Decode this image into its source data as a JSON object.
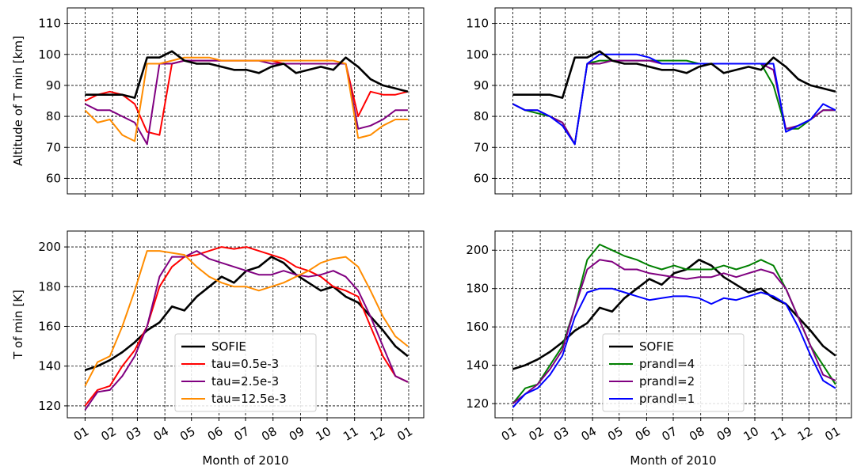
{
  "chart_data": [
    {
      "type": "line",
      "y_label": "Altitude of T min [km]",
      "x": [
        0,
        14,
        28,
        42,
        56,
        70,
        84,
        98,
        112,
        126,
        140,
        154,
        168,
        182,
        196,
        210,
        224,
        238,
        252,
        266,
        280,
        294,
        308,
        322,
        336,
        350,
        364
      ],
      "xlim": [
        -20,
        382
      ],
      "xticks": [
        0,
        31,
        59,
        90,
        120,
        151,
        181,
        212,
        243,
        273,
        304,
        334,
        365
      ],
      "ylim": [
        55,
        115
      ],
      "yticks": [
        60,
        70,
        80,
        90,
        100,
        110
      ],
      "grid": true,
      "series": [
        {
          "name": "tau=0.5e-3",
          "color": "#ff0000",
          "values": [
            85,
            87,
            88,
            87,
            84,
            75,
            74,
            97,
            98,
            98,
            98,
            98,
            98,
            98,
            98,
            98,
            97,
            97,
            97,
            97,
            97,
            97,
            80,
            88,
            87,
            87,
            88
          ]
        },
        {
          "name": "tau=2.5e-3",
          "color": "#800080",
          "values": [
            84,
            82,
            82,
            80,
            78,
            71,
            97,
            97,
            98,
            98,
            98,
            98,
            98,
            98,
            98,
            97,
            97,
            97,
            97,
            97,
            97,
            97,
            76,
            77,
            79,
            82,
            82
          ]
        },
        {
          "name": "tau=12.5e-3",
          "color": "#ff8c00",
          "values": [
            82,
            78,
            79,
            74,
            72,
            97,
            97,
            98,
            99,
            99,
            99,
            98,
            98,
            98,
            98,
            98,
            98,
            98,
            98,
            98,
            98,
            97,
            73,
            74,
            77,
            79,
            79
          ]
        },
        {
          "name": "SOFIE",
          "color": "#000000",
          "values": [
            87,
            87,
            87,
            87,
            86,
            99,
            99,
            101,
            98,
            97,
            97,
            96,
            95,
            95,
            94,
            96,
            97,
            94,
            95,
            96,
            95,
            99,
            96,
            92,
            90,
            89,
            88
          ]
        }
      ]
    },
    {
      "type": "line",
      "x": [
        0,
        14,
        28,
        42,
        56,
        70,
        84,
        98,
        112,
        126,
        140,
        154,
        168,
        182,
        196,
        210,
        224,
        238,
        252,
        266,
        280,
        294,
        308,
        322,
        336,
        350,
        364
      ],
      "xlim": [
        -20,
        382
      ],
      "xticks": [
        0,
        31,
        59,
        90,
        120,
        151,
        181,
        212,
        243,
        273,
        304,
        334,
        365
      ],
      "ylim": [
        55,
        115
      ],
      "yticks": [
        60,
        70,
        80,
        90,
        100,
        110
      ],
      "grid": true,
      "series": [
        {
          "name": "prandl=4",
          "color": "#008000",
          "values": [
            84,
            82,
            81,
            80,
            78,
            71,
            97,
            98,
            98,
            98,
            98,
            98,
            98,
            98,
            98,
            97,
            97,
            97,
            97,
            97,
            97,
            90,
            76,
            76,
            79,
            82,
            82
          ]
        },
        {
          "name": "prandl=2",
          "color": "#800080",
          "values": [
            84,
            82,
            82,
            80,
            78,
            71,
            97,
            97,
            98,
            98,
            98,
            98,
            97,
            97,
            97,
            97,
            97,
            97,
            97,
            97,
            97,
            95,
            76,
            77,
            79,
            82,
            82
          ]
        },
        {
          "name": "prandl=1",
          "color": "#0000ff",
          "values": [
            84,
            82,
            82,
            80,
            77,
            71,
            97,
            100,
            100,
            100,
            100,
            99,
            97,
            97,
            97,
            97,
            97,
            97,
            97,
            97,
            97,
            97,
            75,
            77,
            79,
            84,
            82
          ]
        },
        {
          "name": "SOFIE",
          "color": "#000000",
          "values": [
            87,
            87,
            87,
            87,
            86,
            99,
            99,
            101,
            98,
            97,
            97,
            96,
            95,
            95,
            94,
            96,
            97,
            94,
            95,
            96,
            95,
            99,
            96,
            92,
            90,
            89,
            88
          ]
        }
      ]
    },
    {
      "type": "line",
      "y_label": "T of min [K]",
      "x_label": "Month of 2010",
      "legend": "lower center",
      "x": [
        0,
        14,
        28,
        42,
        56,
        70,
        84,
        98,
        112,
        126,
        140,
        154,
        168,
        182,
        196,
        210,
        224,
        238,
        252,
        266,
        280,
        294,
        308,
        322,
        336,
        350,
        364
      ],
      "xlim": [
        -20,
        382
      ],
      "xticks": [
        {
          "value": 0,
          "label": "01"
        },
        {
          "value": 31,
          "label": "02"
        },
        {
          "value": 59,
          "label": "03"
        },
        {
          "value": 90,
          "label": "04"
        },
        {
          "value": 120,
          "label": "05"
        },
        {
          "value": 151,
          "label": "06"
        },
        {
          "value": 181,
          "label": "07"
        },
        {
          "value": 212,
          "label": "08"
        },
        {
          "value": 243,
          "label": "09"
        },
        {
          "value": 273,
          "label": "10"
        },
        {
          "value": 304,
          "label": "11"
        },
        {
          "value": 334,
          "label": "12"
        },
        {
          "value": 365,
          "label": "01"
        }
      ],
      "ylim": [
        114,
        208
      ],
      "yticks": [
        120,
        140,
        160,
        180,
        200
      ],
      "grid": true,
      "series": [
        {
          "name": "SOFIE",
          "color": "#000000",
          "values": [
            138,
            140,
            143,
            147,
            152,
            158,
            162,
            170,
            168,
            175,
            180,
            185,
            182,
            188,
            190,
            195,
            192,
            186,
            182,
            178,
            180,
            175,
            172,
            165,
            158,
            150,
            145
          ]
        },
        {
          "name": "tau=0.5e-3",
          "color": "#ff0000",
          "values": [
            120,
            128,
            130,
            140,
            148,
            160,
            180,
            190,
            195,
            196,
            198,
            200,
            199,
            200,
            198,
            196,
            194,
            190,
            188,
            185,
            180,
            178,
            175,
            160,
            145,
            135,
            132
          ]
        },
        {
          "name": "tau=2.5e-3",
          "color": "#800080",
          "values": [
            118,
            127,
            128,
            135,
            145,
            160,
            185,
            195,
            195,
            198,
            194,
            192,
            190,
            188,
            186,
            186,
            188,
            186,
            185,
            186,
            188,
            185,
            178,
            165,
            150,
            135,
            132
          ]
        },
        {
          "name": "tau=12.5e-3",
          "color": "#ff8c00",
          "values": [
            130,
            142,
            145,
            160,
            178,
            198,
            198,
            197,
            196,
            190,
            185,
            182,
            180,
            180,
            178,
            180,
            182,
            185,
            188,
            192,
            194,
            195,
            190,
            178,
            165,
            155,
            150
          ]
        }
      ]
    },
    {
      "type": "line",
      "x_label": "Month of 2010",
      "legend": "lower center",
      "x": [
        0,
        14,
        28,
        42,
        56,
        70,
        84,
        98,
        112,
        126,
        140,
        154,
        168,
        182,
        196,
        210,
        224,
        238,
        252,
        266,
        280,
        294,
        308,
        322,
        336,
        350,
        364
      ],
      "xlim": [
        -20,
        382
      ],
      "xticks": [
        {
          "value": 0,
          "label": "01"
        },
        {
          "value": 31,
          "label": "02"
        },
        {
          "value": 59,
          "label": "03"
        },
        {
          "value": 90,
          "label": "04"
        },
        {
          "value": 120,
          "label": "05"
        },
        {
          "value": 151,
          "label": "06"
        },
        {
          "value": 181,
          "label": "07"
        },
        {
          "value": 212,
          "label": "08"
        },
        {
          "value": 243,
          "label": "09"
        },
        {
          "value": 273,
          "label": "10"
        },
        {
          "value": 304,
          "label": "11"
        },
        {
          "value": 334,
          "label": "12"
        },
        {
          "value": 365,
          "label": "01"
        }
      ],
      "ylim": [
        112.6,
        210
      ],
      "yticks": [
        120,
        140,
        160,
        180,
        200
      ],
      "grid": true,
      "series": [
        {
          "name": "SOFIE",
          "color": "#000000",
          "values": [
            138,
            140,
            143,
            147,
            152,
            158,
            162,
            170,
            168,
            175,
            180,
            185,
            182,
            188,
            190,
            195,
            192,
            186,
            182,
            178,
            180,
            175,
            172,
            165,
            158,
            150,
            145
          ]
        },
        {
          "name": "prandl=4",
          "color": "#008000",
          "values": [
            120,
            128,
            130,
            140,
            150,
            170,
            195,
            203,
            200,
            197,
            195,
            192,
            190,
            192,
            190,
            190,
            190,
            192,
            190,
            192,
            195,
            192,
            180,
            165,
            150,
            140,
            130
          ]
        },
        {
          "name": "prandl=2",
          "color": "#800080",
          "values": [
            120,
            125,
            130,
            138,
            148,
            170,
            190,
            195,
            194,
            190,
            190,
            188,
            187,
            186,
            185,
            186,
            186,
            188,
            186,
            188,
            190,
            188,
            180,
            165,
            150,
            135,
            132
          ]
        },
        {
          "name": "prandl=1",
          "color": "#0000ff",
          "values": [
            118,
            125,
            128,
            135,
            145,
            165,
            178,
            180,
            180,
            178,
            176,
            174,
            175,
            176,
            176,
            175,
            172,
            175,
            174,
            176,
            178,
            176,
            172,
            160,
            145,
            132,
            128
          ]
        }
      ]
    }
  ]
}
